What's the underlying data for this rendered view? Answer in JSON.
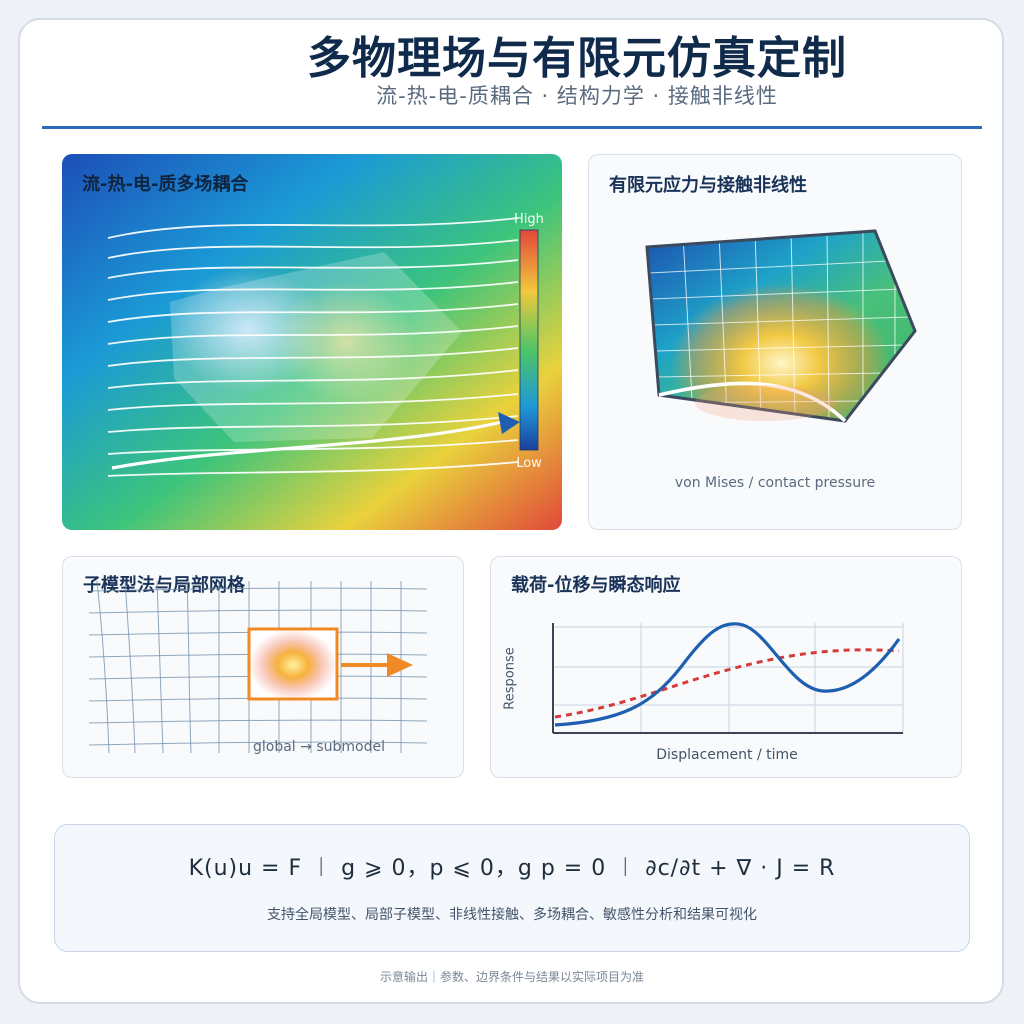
{
  "header": {
    "title": "多物理场与有限元仿真定制",
    "subtitle": "流-热-电-质耦合 · 结构力学 · 接触非线性"
  },
  "panels": {
    "coupling": {
      "title": "流-热-电-质多场耦合",
      "legend_high": "High",
      "legend_low": "Low"
    },
    "fea": {
      "title": "有限元应力与接触非线性",
      "caption": "von Mises / contact pressure"
    },
    "submodel": {
      "title": "子模型法与局部网格",
      "caption": "global → submodel"
    },
    "response": {
      "title": "载荷-位移与瞬态响应",
      "xlabel": "Displacement / time",
      "ylabel": "Response"
    }
  },
  "formula": {
    "equation": "K(u)u = F ︱ g ⩾ 0，p ⩽ 0，g p = 0 ︱ ∂c/∂t + ∇ · J = R",
    "note": "支持全局模型、局部子模型、非线性接触、多场耦合、敏感性分析和结果可视化"
  },
  "footer": "示意输出｜参数、边界条件与结果以实际项目为准",
  "colors": {
    "accent": "#2a6ab8",
    "arrow": "#f08a24",
    "curve_solid": "#1f5fb0",
    "curve_dashed": "#d43b3b"
  }
}
